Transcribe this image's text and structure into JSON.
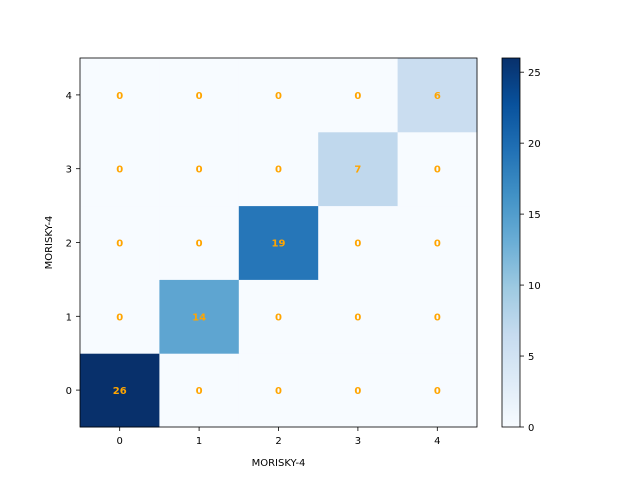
{
  "chart_data": {
    "type": "heatmap",
    "title": "",
    "xlabel": "MORISKY-4",
    "ylabel": "MORISKY-4",
    "x_categories": [
      "0",
      "1",
      "2",
      "3",
      "4"
    ],
    "y_categories": [
      "0",
      "1",
      "2",
      "3",
      "4"
    ],
    "matrix": [
      [
        26,
        0,
        0,
        0,
        0
      ],
      [
        0,
        14,
        0,
        0,
        0
      ],
      [
        0,
        0,
        19,
        0,
        0
      ],
      [
        0,
        0,
        0,
        7,
        0
      ],
      [
        0,
        0,
        0,
        0,
        6
      ]
    ],
    "colormap": "Blues",
    "colorbar": {
      "range": [
        0,
        26
      ],
      "ticks": [
        0,
        5,
        10,
        15,
        20,
        25
      ]
    },
    "annotation_color": "#ffa500",
    "y_origin": "bottom",
    "grid": false
  }
}
